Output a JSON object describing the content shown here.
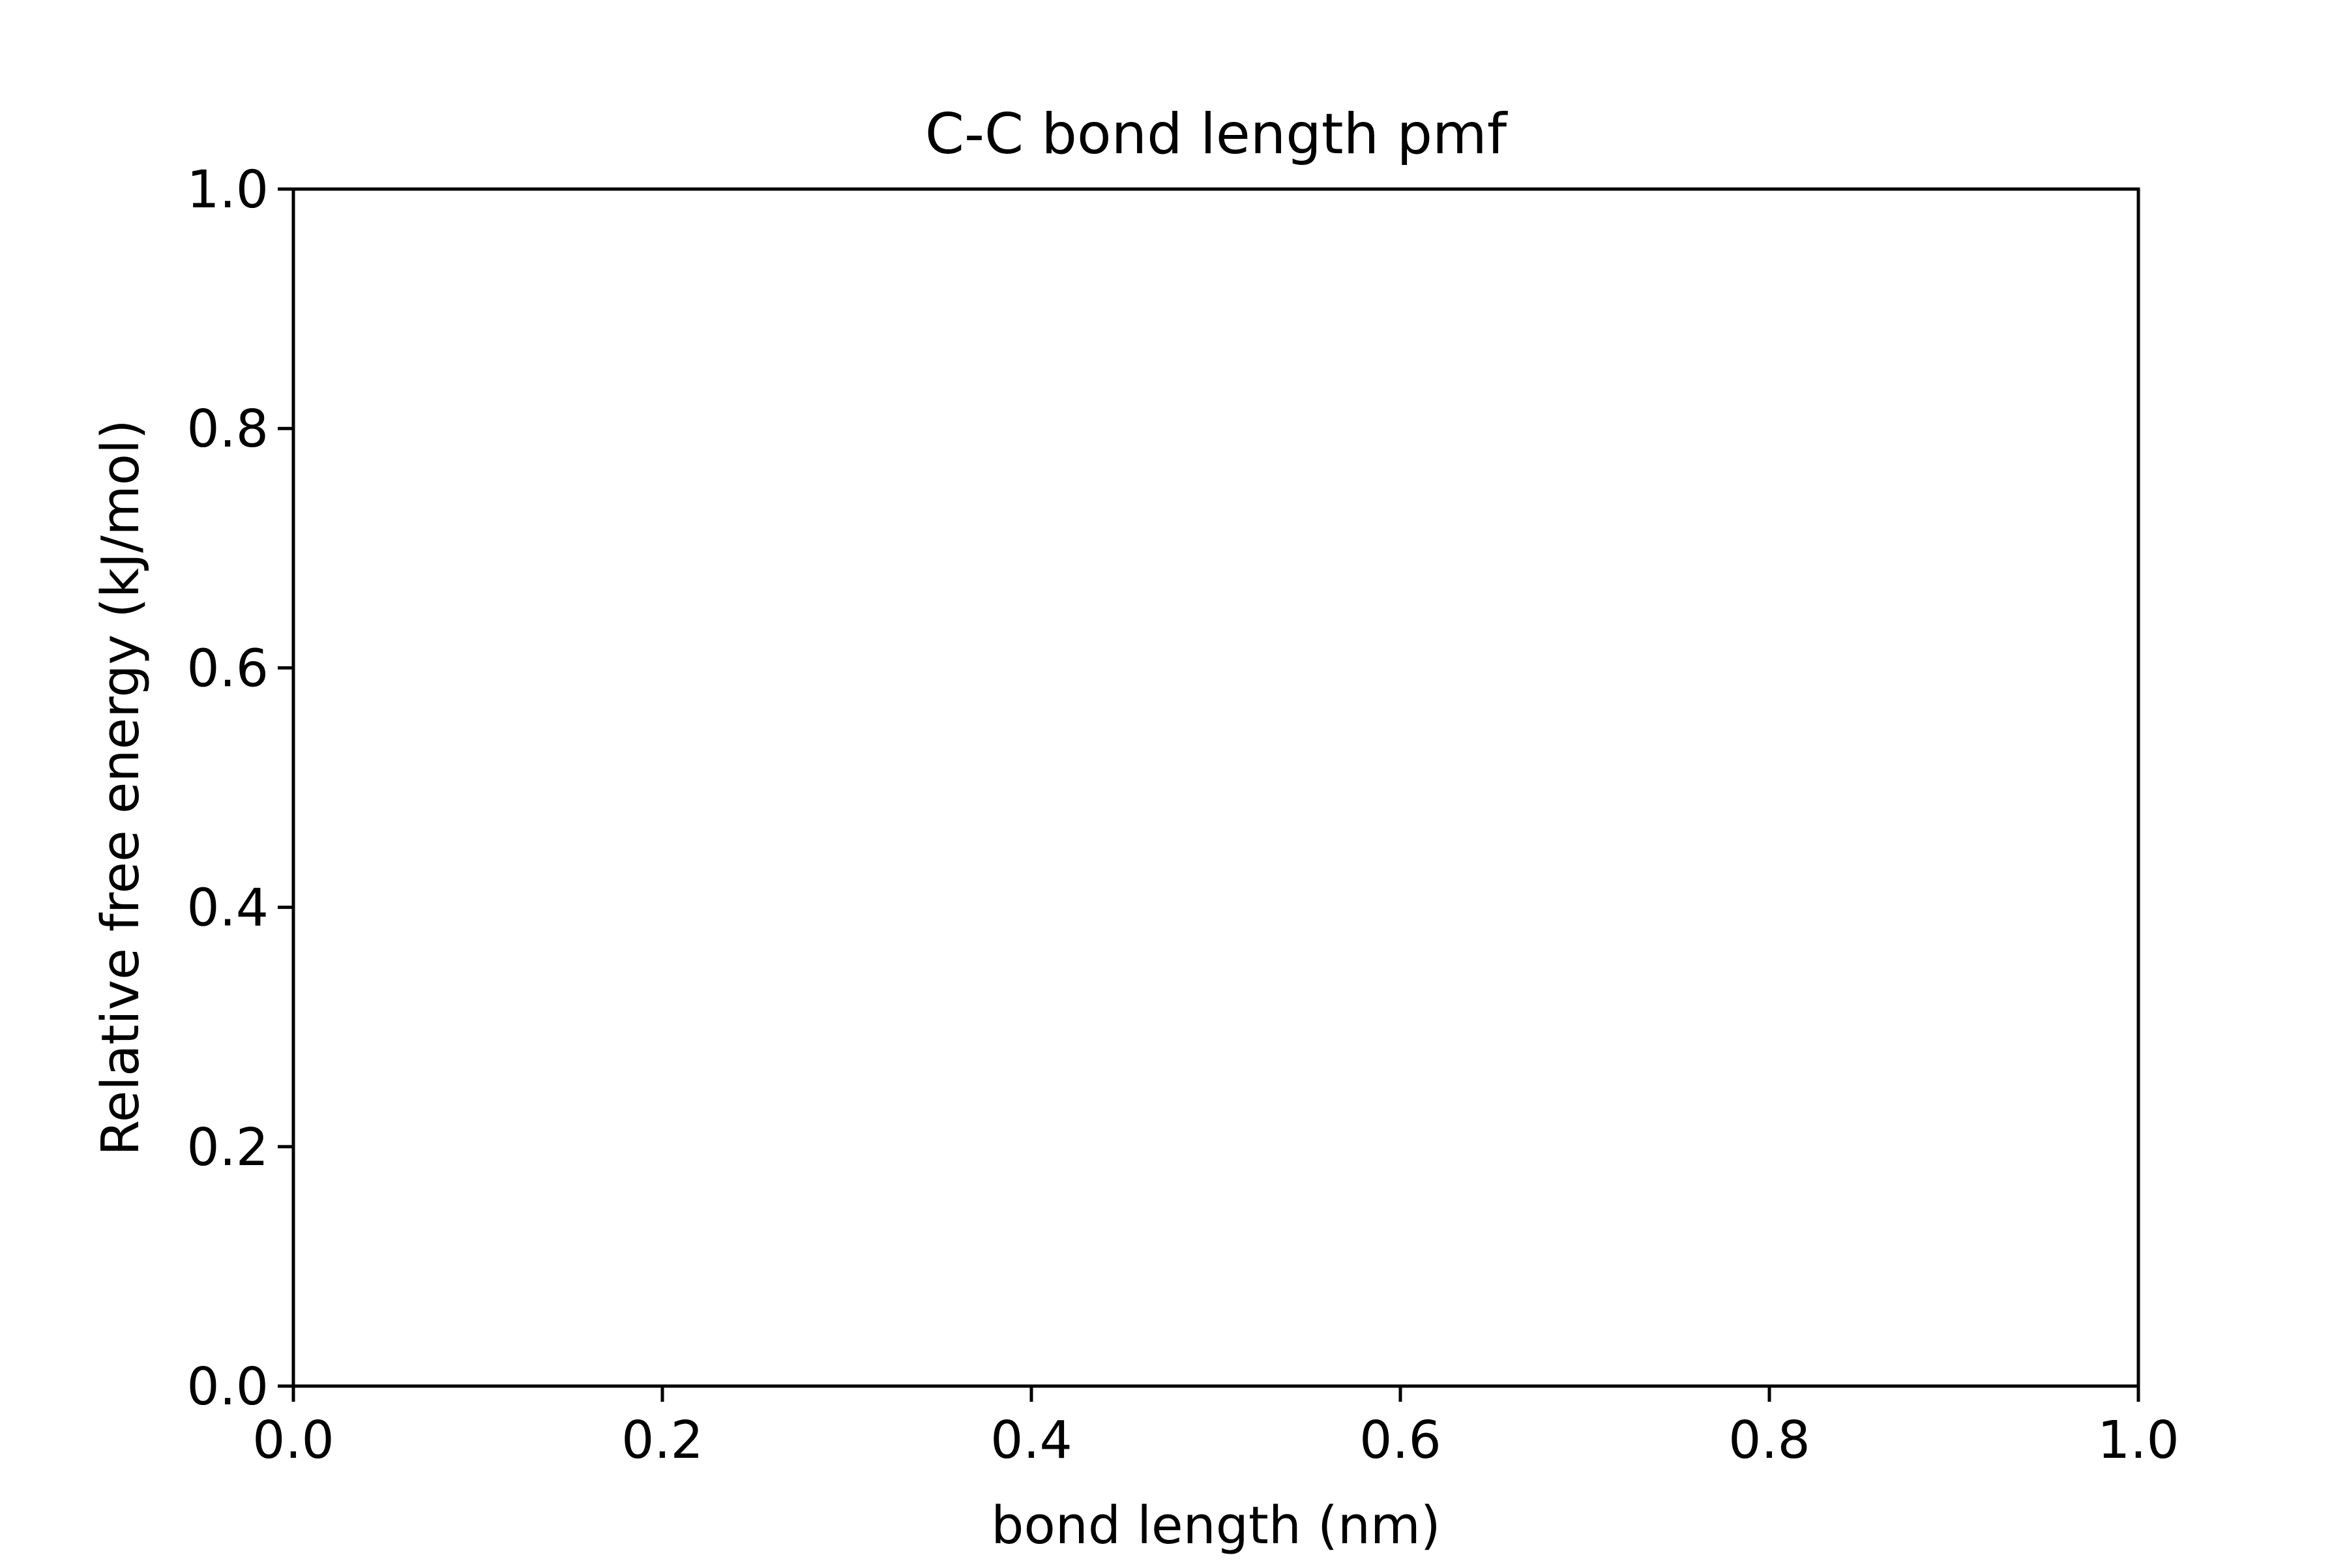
{
  "chart_data": {
    "type": "line",
    "title": "C-C bond length pmf",
    "xlabel": "bond length (nm)",
    "ylabel": "Relative free energy (kJ/mol)",
    "xlim": [
      0.0,
      1.0
    ],
    "ylim": [
      0.0,
      1.0
    ],
    "x_ticks": [
      "0.0",
      "0.2",
      "0.4",
      "0.6",
      "0.8",
      "1.0"
    ],
    "y_ticks": [
      "0.0",
      "0.2",
      "0.4",
      "0.6",
      "0.8",
      "1.0"
    ],
    "grid": false,
    "series": []
  }
}
